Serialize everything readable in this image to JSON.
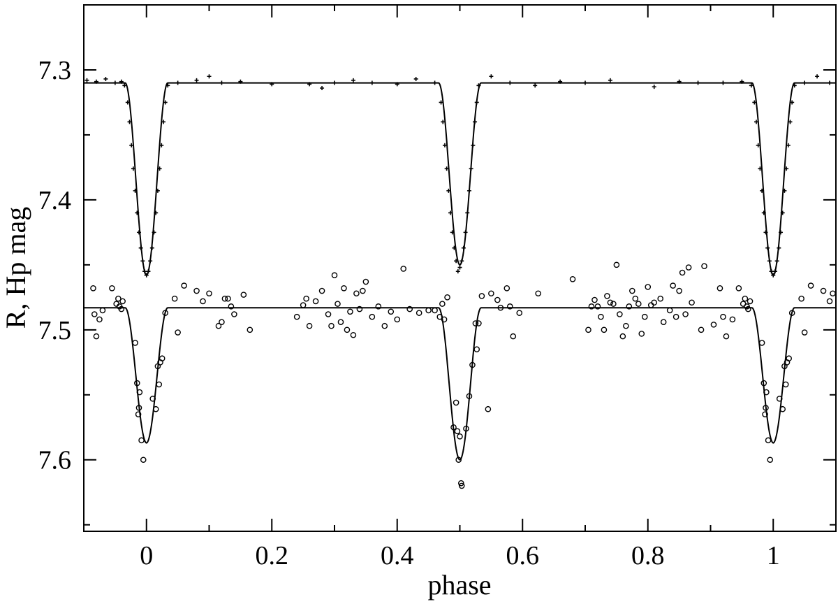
{
  "chart_data": {
    "type": "scatter",
    "xlabel": "phase",
    "ylabel": "R, Hp mag",
    "xlim": [
      -0.1,
      1.1
    ],
    "ylim": [
      7.25,
      7.655
    ],
    "y_inverted": true,
    "grid": false,
    "x_ticks": [
      0,
      0.2,
      0.4,
      0.6,
      0.8,
      1
    ],
    "x_tick_labels": [
      "0",
      "0.2",
      "0.4",
      "0.6",
      "0.8",
      "1"
    ],
    "y_ticks": [
      7.3,
      7.4,
      7.5,
      7.6
    ],
    "y_tick_labels": [
      "7.3",
      "7.4",
      "7.5",
      "7.6"
    ],
    "colors": {
      "ink": "#000000",
      "background": "#ffffff"
    },
    "series": [
      {
        "marker": "plus",
        "model_curve": {
          "baseline": 7.31,
          "primary_depth": 0.148,
          "secondary_depth": 0.14,
          "eclipse_halfwidth": 0.034,
          "primary_phase": 0.0,
          "secondary_phase": 0.5
        },
        "points": [
          [
            -0.095,
            7.308
          ],
          [
            -0.08,
            7.309
          ],
          [
            -0.065,
            7.307
          ],
          [
            -0.05,
            7.31
          ],
          [
            -0.04,
            7.309
          ],
          [
            -0.035,
            7.312
          ],
          [
            -0.03,
            7.325
          ],
          [
            -0.027,
            7.34
          ],
          [
            -0.024,
            7.358
          ],
          [
            -0.021,
            7.376
          ],
          [
            -0.018,
            7.393
          ],
          [
            -0.015,
            7.41
          ],
          [
            -0.012,
            7.425
          ],
          [
            -0.009,
            7.437
          ],
          [
            -0.006,
            7.447
          ],
          [
            -0.003,
            7.455
          ],
          [
            0.0,
            7.458
          ],
          [
            0.003,
            7.455
          ],
          [
            0.006,
            7.447
          ],
          [
            0.009,
            7.437
          ],
          [
            0.012,
            7.425
          ],
          [
            0.015,
            7.41
          ],
          [
            0.018,
            7.393
          ],
          [
            0.021,
            7.376
          ],
          [
            0.024,
            7.358
          ],
          [
            0.027,
            7.34
          ],
          [
            0.03,
            7.325
          ],
          [
            0.034,
            7.312
          ],
          [
            0.05,
            7.31
          ],
          [
            0.08,
            7.308
          ],
          [
            0.1,
            7.305
          ],
          [
            0.12,
            7.31
          ],
          [
            0.15,
            7.309
          ],
          [
            0.2,
            7.311
          ],
          [
            0.26,
            7.311
          ],
          [
            0.28,
            7.314
          ],
          [
            0.3,
            7.31
          ],
          [
            0.33,
            7.308
          ],
          [
            0.36,
            7.31
          ],
          [
            0.4,
            7.311
          ],
          [
            0.43,
            7.307
          ],
          [
            0.46,
            7.31
          ],
          [
            0.47,
            7.325
          ],
          [
            0.473,
            7.34
          ],
          [
            0.476,
            7.358
          ],
          [
            0.479,
            7.376
          ],
          [
            0.482,
            7.393
          ],
          [
            0.485,
            7.41
          ],
          [
            0.488,
            7.425
          ],
          [
            0.491,
            7.437
          ],
          [
            0.494,
            7.447
          ],
          [
            0.497,
            7.455
          ],
          [
            0.5,
            7.452
          ],
          [
            0.503,
            7.447
          ],
          [
            0.506,
            7.437
          ],
          [
            0.509,
            7.425
          ],
          [
            0.512,
            7.41
          ],
          [
            0.515,
            7.393
          ],
          [
            0.518,
            7.376
          ],
          [
            0.521,
            7.358
          ],
          [
            0.524,
            7.34
          ],
          [
            0.527,
            7.325
          ],
          [
            0.53,
            7.312
          ],
          [
            0.55,
            7.305
          ],
          [
            0.58,
            7.31
          ],
          [
            0.62,
            7.312
          ],
          [
            0.66,
            7.309
          ],
          [
            0.7,
            7.31
          ],
          [
            0.74,
            7.308
          ],
          [
            0.81,
            7.313
          ],
          [
            0.85,
            7.309
          ],
          [
            0.88,
            7.31
          ],
          [
            0.92,
            7.31
          ],
          [
            0.95,
            7.309
          ],
          [
            0.965,
            7.312
          ],
          [
            0.97,
            7.325
          ],
          [
            0.973,
            7.34
          ],
          [
            0.976,
            7.358
          ],
          [
            0.979,
            7.376
          ],
          [
            0.982,
            7.393
          ],
          [
            0.985,
            7.41
          ],
          [
            0.988,
            7.425
          ],
          [
            0.991,
            7.437
          ],
          [
            0.994,
            7.447
          ],
          [
            0.997,
            7.455
          ],
          [
            1.0,
            7.458
          ],
          [
            1.003,
            7.455
          ],
          [
            1.006,
            7.447
          ],
          [
            1.009,
            7.437
          ],
          [
            1.012,
            7.425
          ],
          [
            1.015,
            7.41
          ],
          [
            1.018,
            7.393
          ],
          [
            1.021,
            7.376
          ],
          [
            1.024,
            7.358
          ],
          [
            1.027,
            7.34
          ],
          [
            1.03,
            7.325
          ],
          [
            1.034,
            7.312
          ],
          [
            1.05,
            7.31
          ],
          [
            1.07,
            7.305
          ],
          [
            1.09,
            7.31
          ]
        ]
      },
      {
        "marker": "circle",
        "model_curve": {
          "baseline": 7.483,
          "primary_depth": 0.104,
          "secondary_depth": 0.117,
          "eclipse_halfwidth": 0.034,
          "primary_phase": 0.0,
          "secondary_phase": 0.5
        },
        "points": [
          [
            -0.085,
            7.468
          ],
          [
            -0.083,
            7.488
          ],
          [
            -0.08,
            7.505
          ],
          [
            -0.075,
            7.492
          ],
          [
            -0.07,
            7.485
          ],
          [
            -0.055,
            7.468
          ],
          [
            -0.048,
            7.48
          ],
          [
            -0.045,
            7.476
          ],
          [
            -0.043,
            7.482
          ],
          [
            -0.04,
            7.484
          ],
          [
            -0.038,
            7.478
          ],
          [
            -0.018,
            7.51
          ],
          [
            -0.015,
            7.541
          ],
          [
            -0.013,
            7.565
          ],
          [
            -0.012,
            7.56
          ],
          [
            -0.011,
            7.548
          ],
          [
            -0.008,
            7.585
          ],
          [
            -0.005,
            7.6
          ],
          [
            0.01,
            7.553
          ],
          [
            0.015,
            7.561
          ],
          [
            0.018,
            7.528
          ],
          [
            0.02,
            7.542
          ],
          [
            0.022,
            7.525
          ],
          [
            0.025,
            7.522
          ],
          [
            0.03,
            7.487
          ],
          [
            0.045,
            7.476
          ],
          [
            0.05,
            7.502
          ],
          [
            0.06,
            7.466
          ],
          [
            0.08,
            7.47
          ],
          [
            0.09,
            7.478
          ],
          [
            0.1,
            7.472
          ],
          [
            0.115,
            7.497
          ],
          [
            0.12,
            7.494
          ],
          [
            0.125,
            7.476
          ],
          [
            0.13,
            7.476
          ],
          [
            0.135,
            7.482
          ],
          [
            0.14,
            7.488
          ],
          [
            0.155,
            7.473
          ],
          [
            0.165,
            7.5
          ],
          [
            0.24,
            7.49
          ],
          [
            0.25,
            7.481
          ],
          [
            0.255,
            7.476
          ],
          [
            0.26,
            7.497
          ],
          [
            0.27,
            7.478
          ],
          [
            0.28,
            7.47
          ],
          [
            0.29,
            7.488
          ],
          [
            0.295,
            7.497
          ],
          [
            0.3,
            7.458
          ],
          [
            0.305,
            7.48
          ],
          [
            0.31,
            7.494
          ],
          [
            0.315,
            7.468
          ],
          [
            0.32,
            7.5
          ],
          [
            0.325,
            7.486
          ],
          [
            0.33,
            7.504
          ],
          [
            0.335,
            7.472
          ],
          [
            0.34,
            7.484
          ],
          [
            0.345,
            7.47
          ],
          [
            0.35,
            7.463
          ],
          [
            0.36,
            7.49
          ],
          [
            0.37,
            7.482
          ],
          [
            0.38,
            7.497
          ],
          [
            0.39,
            7.486
          ],
          [
            0.4,
            7.492
          ],
          [
            0.41,
            7.453
          ],
          [
            0.42,
            7.484
          ],
          [
            0.435,
            7.487
          ],
          [
            0.45,
            7.485
          ],
          [
            0.46,
            7.485
          ],
          [
            0.468,
            7.49
          ],
          [
            0.472,
            7.48
          ],
          [
            0.475,
            7.492
          ],
          [
            0.48,
            7.475
          ],
          [
            0.49,
            7.575
          ],
          [
            0.494,
            7.556
          ],
          [
            0.496,
            7.578
          ],
          [
            0.498,
            7.6
          ],
          [
            0.5,
            7.582
          ],
          [
            0.502,
            7.618
          ],
          [
            0.503,
            7.62
          ],
          [
            0.51,
            7.576
          ],
          [
            0.515,
            7.551
          ],
          [
            0.52,
            7.527
          ],
          [
            0.525,
            7.495
          ],
          [
            0.527,
            7.515
          ],
          [
            0.53,
            7.495
          ],
          [
            0.535,
            7.474
          ],
          [
            0.545,
            7.561
          ],
          [
            0.55,
            7.472
          ],
          [
            0.56,
            7.477
          ],
          [
            0.565,
            7.483
          ],
          [
            0.575,
            7.468
          ],
          [
            0.58,
            7.482
          ],
          [
            0.585,
            7.505
          ],
          [
            0.595,
            7.487
          ],
          [
            0.625,
            7.472
          ],
          [
            0.68,
            7.461
          ],
          [
            0.705,
            7.5
          ],
          [
            0.71,
            7.482
          ],
          [
            0.715,
            7.477
          ],
          [
            0.72,
            7.482
          ],
          [
            0.725,
            7.49
          ],
          [
            0.73,
            7.5
          ],
          [
            0.735,
            7.474
          ],
          [
            0.74,
            7.479
          ],
          [
            0.745,
            7.48
          ],
          [
            0.75,
            7.45
          ],
          [
            0.755,
            7.488
          ],
          [
            0.76,
            7.505
          ],
          [
            0.765,
            7.497
          ],
          [
            0.77,
            7.482
          ],
          [
            0.775,
            7.47
          ],
          [
            0.78,
            7.476
          ],
          [
            0.785,
            7.48
          ],
          [
            0.79,
            7.503
          ],
          [
            0.795,
            7.49
          ],
          [
            0.8,
            7.467
          ],
          [
            0.805,
            7.481
          ],
          [
            0.81,
            7.479
          ],
          [
            0.82,
            7.476
          ],
          [
            0.825,
            7.494
          ],
          [
            0.835,
            7.485
          ],
          [
            0.84,
            7.466
          ],
          [
            0.845,
            7.49
          ],
          [
            0.85,
            7.47
          ],
          [
            0.855,
            7.456
          ],
          [
            0.86,
            7.488
          ],
          [
            0.865,
            7.452
          ],
          [
            0.87,
            7.479
          ],
          [
            0.885,
            7.5
          ],
          [
            0.89,
            7.451
          ],
          [
            0.905,
            7.496
          ],
          [
            0.915,
            7.468
          ],
          [
            0.92,
            7.49
          ],
          [
            0.925,
            7.505
          ],
          [
            0.935,
            7.492
          ],
          [
            0.945,
            7.468
          ],
          [
            0.952,
            7.48
          ],
          [
            0.955,
            7.476
          ],
          [
            0.958,
            7.482
          ],
          [
            0.96,
            7.484
          ],
          [
            0.963,
            7.478
          ],
          [
            0.982,
            7.51
          ],
          [
            0.985,
            7.541
          ],
          [
            0.987,
            7.565
          ],
          [
            0.988,
            7.56
          ],
          [
            0.989,
            7.548
          ],
          [
            0.992,
            7.585
          ],
          [
            0.995,
            7.6
          ],
          [
            1.01,
            7.553
          ],
          [
            1.015,
            7.561
          ],
          [
            1.018,
            7.528
          ],
          [
            1.02,
            7.542
          ],
          [
            1.022,
            7.525
          ],
          [
            1.025,
            7.522
          ],
          [
            1.03,
            7.487
          ],
          [
            1.045,
            7.476
          ],
          [
            1.05,
            7.502
          ],
          [
            1.06,
            7.466
          ],
          [
            1.08,
            7.47
          ],
          [
            1.09,
            7.478
          ],
          [
            1.095,
            7.472
          ]
        ]
      }
    ]
  }
}
